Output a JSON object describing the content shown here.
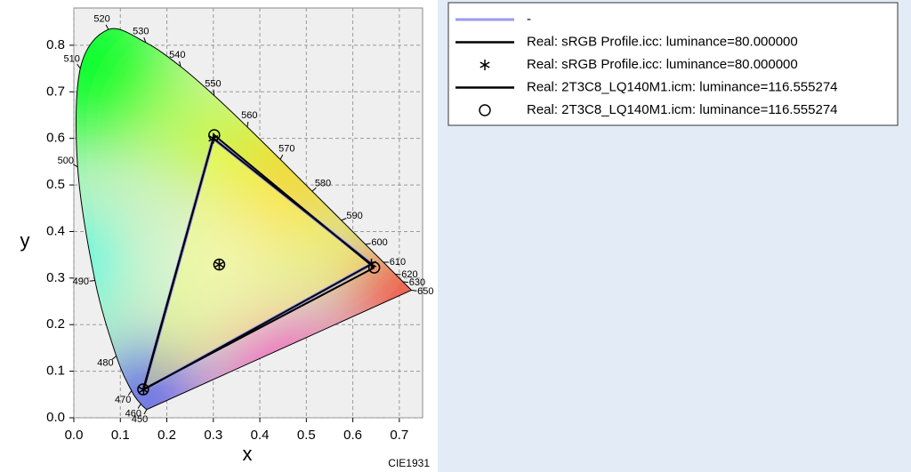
{
  "chart_data": {
    "type": "chromaticity",
    "subtitle": "CIE1931",
    "xlabel": "x",
    "ylabel": "y",
    "xlim": [
      0,
      0.75
    ],
    "ylim": [
      0,
      0.88
    ],
    "xticks": [
      {
        "value": 0,
        "label": "0.0"
      },
      {
        "value": 0.1,
        "label": "0.1"
      },
      {
        "value": 0.2,
        "label": "0.2"
      },
      {
        "value": 0.3,
        "label": "0.3"
      },
      {
        "value": 0.4,
        "label": "0.4"
      },
      {
        "value": 0.5,
        "label": "0.5"
      },
      {
        "value": 0.6,
        "label": "0.6"
      },
      {
        "value": 0.7,
        "label": "0.7"
      }
    ],
    "yticks": [
      {
        "value": 0,
        "label": "0.0"
      },
      {
        "value": 0.1,
        "label": "0.1"
      },
      {
        "value": 0.2,
        "label": "0.2"
      },
      {
        "value": 0.3,
        "label": "0.3"
      },
      {
        "value": 0.4,
        "label": "0.4"
      },
      {
        "value": 0.5,
        "label": "0.5"
      },
      {
        "value": 0.6,
        "label": "0.6"
      },
      {
        "value": 0.7,
        "label": "0.7"
      },
      {
        "value": 0.8,
        "label": "0.8"
      }
    ],
    "grid": true,
    "locus": {
      "wavelengths": [
        450,
        460,
        470,
        480,
        490,
        500,
        510,
        520,
        530,
        540,
        550,
        560,
        570,
        580,
        590,
        600,
        610,
        620,
        630,
        650
      ],
      "x": [
        0.1566,
        0.144,
        0.1241,
        0.0913,
        0.0454,
        0.0082,
        0.0139,
        0.0743,
        0.1547,
        0.2296,
        0.3016,
        0.3731,
        0.4441,
        0.5125,
        0.5752,
        0.627,
        0.6658,
        0.6915,
        0.7079,
        0.726
      ],
      "y": [
        0.0177,
        0.0297,
        0.0578,
        0.1327,
        0.295,
        0.5384,
        0.7502,
        0.8338,
        0.8059,
        0.7543,
        0.6923,
        0.6245,
        0.5547,
        0.4866,
        0.4242,
        0.3725,
        0.334,
        0.3083,
        0.292,
        0.274
      ]
    },
    "series": [
      {
        "name": "-",
        "color": "#9a9af0",
        "linestyle": "-",
        "marker": "none",
        "x": [
          0.64,
          0.3,
          0.15,
          0.64
        ],
        "y": [
          0.33,
          0.6,
          0.06,
          0.33
        ]
      },
      {
        "name": "Real: sRGB Profile.icc: luminance=80.000000",
        "color": "#000000",
        "linestyle": "-",
        "marker": "none",
        "x": [
          0.64,
          0.3,
          0.15,
          0.64
        ],
        "y": [
          0.33,
          0.6,
          0.06,
          0.33
        ]
      },
      {
        "name": "Real: sRGB Profile.icc: luminance=80.000000",
        "color": "#000000",
        "linestyle": "none",
        "marker": "*",
        "x": [
          0.64,
          0.3,
          0.15,
          0.3127
        ],
        "y": [
          0.33,
          0.6,
          0.06,
          0.329
        ]
      },
      {
        "name": "Real: 2T3C8_LQ140M1.icm: luminance=116.555274",
        "color": "#000000",
        "linestyle": "-",
        "marker": "none",
        "x": [
          0.646,
          0.302,
          0.149,
          0.646
        ],
        "y": [
          0.3225,
          0.607,
          0.061,
          0.3225
        ]
      },
      {
        "name": "Real: 2T3C8_LQ140M1.icm: luminance=116.555274",
        "color": "#000000",
        "linestyle": "none",
        "marker": "o",
        "x": [
          0.646,
          0.302,
          0.149,
          0.3127
        ],
        "y": [
          0.3225,
          0.607,
          0.061,
          0.329
        ]
      }
    ]
  }
}
